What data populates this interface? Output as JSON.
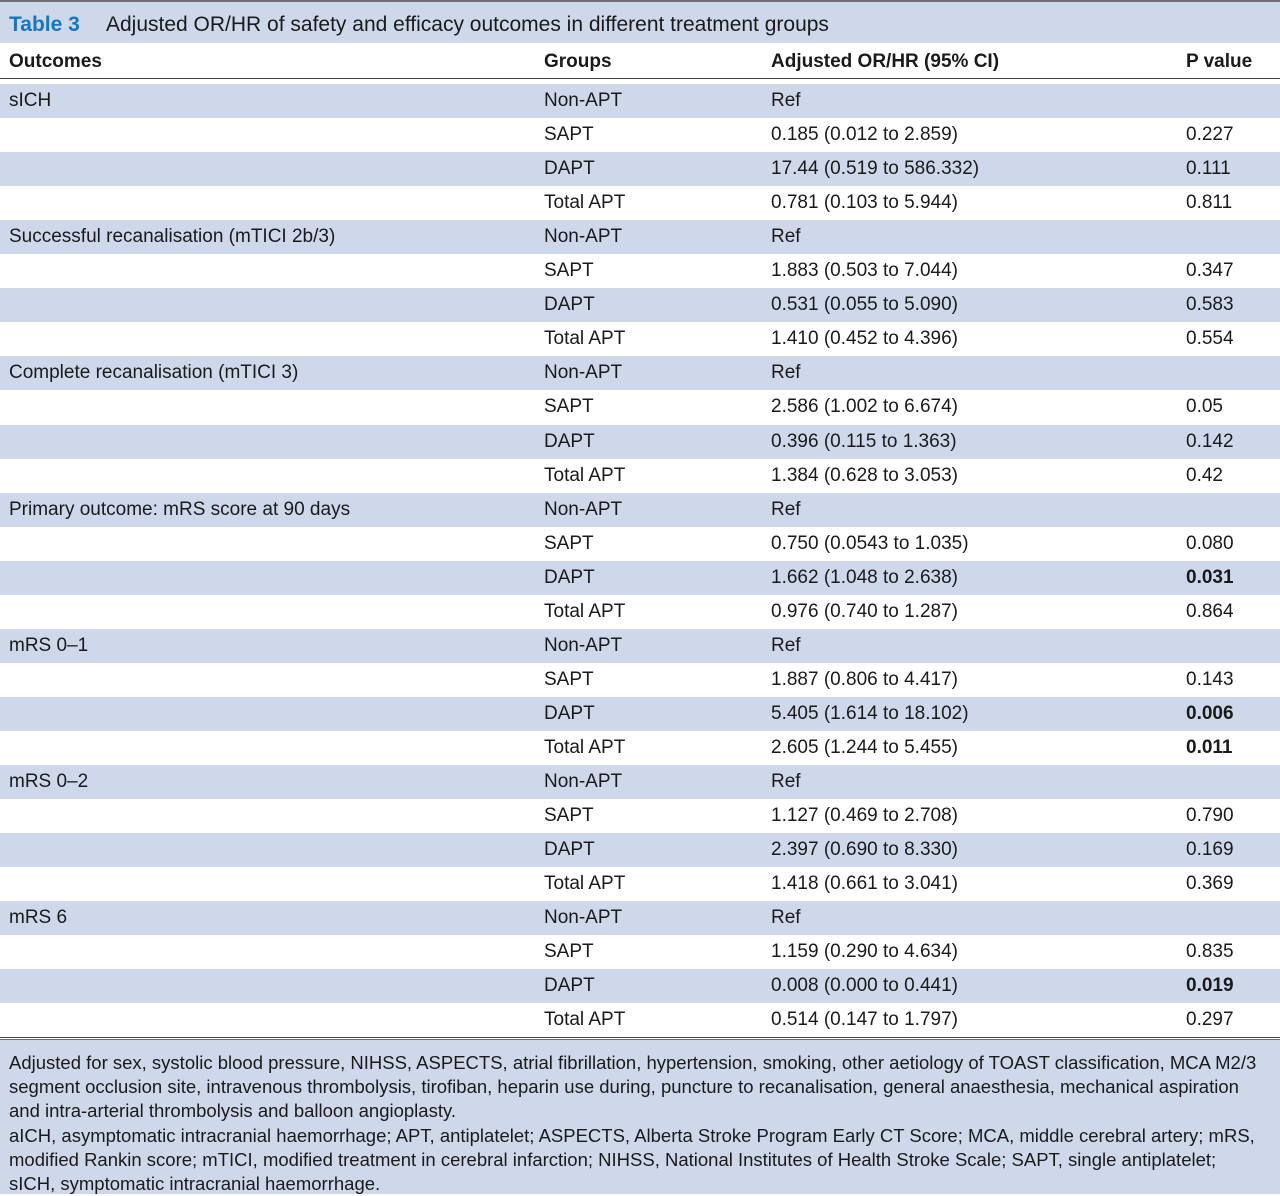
{
  "caption": {
    "label": "Table 3",
    "title": "Adjusted OR/HR of safety and efficacy outcomes in different treatment groups"
  },
  "headers": [
    "Outcomes",
    "Groups",
    "Adjusted OR/HR (95% CI)",
    "P value"
  ],
  "rows": [
    {
      "outcome": "sICH",
      "group": "Non-APT",
      "estimate": "Ref",
      "p": "",
      "p_bold": false
    },
    {
      "outcome": "",
      "group": "SAPT",
      "estimate": "0.185 (0.012 to 2.859)",
      "p": "0.227",
      "p_bold": false
    },
    {
      "outcome": "",
      "group": "DAPT",
      "estimate": "17.44 (0.519 to 586.332)",
      "p": "0.111",
      "p_bold": false
    },
    {
      "outcome": "",
      "group": "Total APT",
      "estimate": "0.781 (0.103 to 5.944)",
      "p": "0.811",
      "p_bold": false
    },
    {
      "outcome": "Successful recanalisation (mTICI 2b/3)",
      "group": "Non-APT",
      "estimate": "Ref",
      "p": "",
      "p_bold": false
    },
    {
      "outcome": "",
      "group": "SAPT",
      "estimate": "1.883 (0.503 to 7.044)",
      "p": "0.347",
      "p_bold": false
    },
    {
      "outcome": "",
      "group": "DAPT",
      "estimate": "0.531 (0.055 to 5.090)",
      "p": "0.583",
      "p_bold": false
    },
    {
      "outcome": "",
      "group": "Total APT",
      "estimate": "1.410 (0.452 to 4.396)",
      "p": "0.554",
      "p_bold": false
    },
    {
      "outcome": "Complete recanalisation (mTICI 3)",
      "group": "Non-APT",
      "estimate": "Ref",
      "p": "",
      "p_bold": false
    },
    {
      "outcome": "",
      "group": "SAPT",
      "estimate": "2.586 (1.002 to 6.674)",
      "p": "0.05",
      "p_bold": false
    },
    {
      "outcome": "",
      "group": "DAPT",
      "estimate": "0.396 (0.115 to 1.363)",
      "p": "0.142",
      "p_bold": false
    },
    {
      "outcome": "",
      "group": "Total APT",
      "estimate": "1.384 (0.628 to 3.053)",
      "p": "0.42",
      "p_bold": false
    },
    {
      "outcome": "Primary outcome: mRS score at 90 days",
      "group": "Non-APT",
      "estimate": "Ref",
      "p": "",
      "p_bold": false
    },
    {
      "outcome": "",
      "group": "SAPT",
      "estimate": "0.750 (0.0543 to 1.035)",
      "p": "0.080",
      "p_bold": false
    },
    {
      "outcome": "",
      "group": "DAPT",
      "estimate": "1.662 (1.048 to 2.638)",
      "p": "0.031",
      "p_bold": true
    },
    {
      "outcome": "",
      "group": "Total APT",
      "estimate": "0.976 (0.740 to 1.287)",
      "p": "0.864",
      "p_bold": false
    },
    {
      "outcome": "mRS 0–1",
      "group": "Non-APT",
      "estimate": "Ref",
      "p": "",
      "p_bold": false
    },
    {
      "outcome": "",
      "group": "SAPT",
      "estimate": "1.887 (0.806 to 4.417)",
      "p": "0.143",
      "p_bold": false
    },
    {
      "outcome": "",
      "group": "DAPT",
      "estimate": "5.405 (1.614 to 18.102)",
      "p": "0.006",
      "p_bold": true
    },
    {
      "outcome": "",
      "group": "Total APT",
      "estimate": "2.605 (1.244 to 5.455)",
      "p": "0.011",
      "p_bold": true
    },
    {
      "outcome": "mRS 0–2",
      "group": "Non-APT",
      "estimate": "Ref",
      "p": "",
      "p_bold": false
    },
    {
      "outcome": "",
      "group": "SAPT",
      "estimate": "1.127 (0.469 to 2.708)",
      "p": "0.790",
      "p_bold": false
    },
    {
      "outcome": "",
      "group": "DAPT",
      "estimate": "2.397 (0.690 to 8.330)",
      "p": "0.169",
      "p_bold": false
    },
    {
      "outcome": "",
      "group": "Total APT",
      "estimate": "1.418 (0.661 to 3.041)",
      "p": "0.369",
      "p_bold": false
    },
    {
      "outcome": "mRS 6",
      "group": "Non-APT",
      "estimate": "Ref",
      "p": "",
      "p_bold": false
    },
    {
      "outcome": "",
      "group": "SAPT",
      "estimate": "1.159 (0.290 to 4.634)",
      "p": "0.835",
      "p_bold": false
    },
    {
      "outcome": "",
      "group": "DAPT",
      "estimate": "0.008 (0.000 to 0.441)",
      "p": "0.019",
      "p_bold": true
    },
    {
      "outcome": "",
      "group": "Total APT",
      "estimate": "0.514 (0.147 to 1.797)",
      "p": "0.297",
      "p_bold": false
    }
  ],
  "footnotes": [
    "Adjusted for sex, systolic blood pressure, NIHSS, ASPECTS, atrial fibrillation, hypertension, smoking, other aetiology of TOAST classification, MCA M2/3 segment occlusion site, intravenous thrombolysis, tirofiban, heparin use during, puncture to recanalisation, general anaesthesia, mechanical aspiration and intra-arterial thrombolysis and balloon angioplasty.",
    "aICH, asymptomatic intracranial haemorrhage; APT, antiplatelet; ASPECTS, Alberta Stroke Program Early CT Score; MCA, middle cerebral artery; mRS, modified Rankin score; mTICI, modified treatment in cerebral infarction; NIHSS, National Institutes of Health Stroke Scale; SAPT, single antiplatelet; sICH, symptomatic intracranial haemorrhage."
  ],
  "colors": {
    "accent": "#1577bd",
    "band": "#cfd8eb"
  }
}
